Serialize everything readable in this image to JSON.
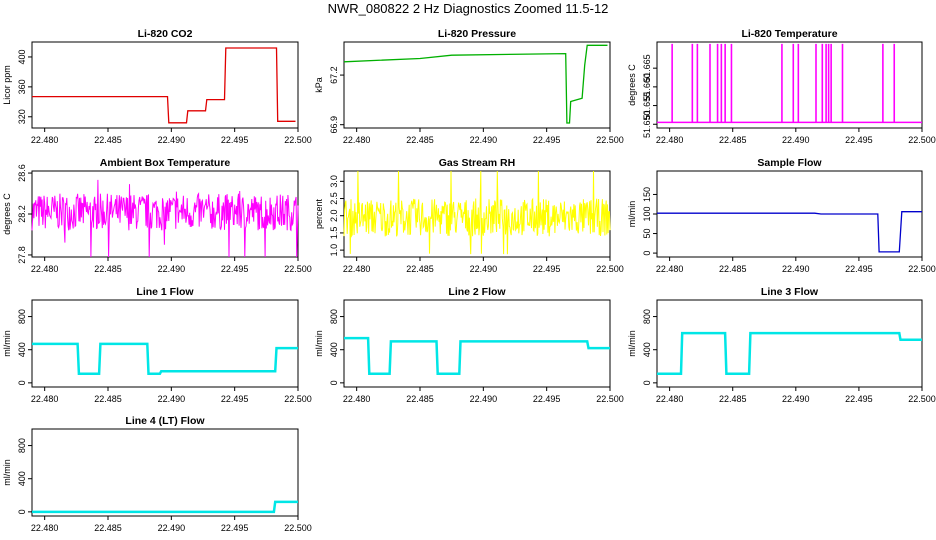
{
  "page_title": "NWR_080822  2 Hz Diagnostics Zoomed 11.5-12",
  "chart_data": [
    {
      "type": "line",
      "title": "Li-820 CO2",
      "ylabel": "Licor ppm",
      "color": "#e00000",
      "xlim": [
        22.479,
        22.5
      ],
      "ylim": [
        305,
        420
      ],
      "yticks": [
        320,
        360,
        400
      ],
      "series": [
        {
          "x": [
            22.479,
            22.4897,
            22.4898,
            22.4912,
            22.4913,
            22.4927,
            22.4928,
            22.4942,
            22.4943,
            22.4983,
            22.4984,
            22.4998
          ],
          "y": [
            347,
            347,
            312,
            312,
            328,
            328,
            343,
            343,
            412,
            412,
            314,
            314
          ]
        }
      ]
    },
    {
      "type": "line",
      "title": "Li-820 Pressure",
      "ylabel": "kPa",
      "color": "#00b000",
      "xlim": [
        22.479,
        22.5
      ],
      "ylim": [
        66.88,
        67.4
      ],
      "yticks": [
        66.9,
        67.2
      ],
      "yticklabels": [
        "66.9",
        "67.2"
      ],
      "series": [
        {
          "x": [
            22.479,
            22.485,
            22.4875,
            22.4965,
            22.4966,
            22.4968,
            22.4969,
            22.4978,
            22.498,
            22.4982,
            22.4998
          ],
          "y": [
            67.28,
            67.3,
            67.32,
            67.33,
            66.91,
            66.91,
            67.04,
            67.06,
            67.26,
            67.38,
            67.38
          ]
        }
      ]
    },
    {
      "type": "line",
      "title": "Li-820 Temperature",
      "ylabel": "degrees C",
      "color": "#ff00ff",
      "xlim": [
        22.479,
        22.5
      ],
      "ylim": [
        51.649,
        51.672
      ],
      "yticks": [
        51.65,
        51.655,
        51.66,
        51.665
      ],
      "yticklabels": [
        "51.650",
        "51.655",
        "51.660",
        "51.665"
      ],
      "baseline": 51.6505,
      "peak": 51.6715,
      "spikes": [
        22.4802,
        22.4818,
        22.4822,
        22.4832,
        22.4838,
        22.4841,
        22.4844,
        22.4849,
        22.4889,
        22.4898,
        22.4902,
        22.4916,
        22.4921,
        22.4924,
        22.4926,
        22.4928,
        22.4937,
        22.4969,
        22.4978
      ]
    },
    {
      "type": "line",
      "title": "Ambient Box Temperature",
      "ylabel": "degrees C",
      "color": "#ff00ff",
      "xlim": [
        22.479,
        22.5
      ],
      "ylim": [
        27.78,
        28.62
      ],
      "yticks": [
        27.8,
        28.2,
        28.6
      ],
      "yticklabels": [
        "27.8",
        "28.2",
        "28.6"
      ],
      "noise": {
        "center": 28.22,
        "amplitude": 0.18,
        "spikes": [
          27.82,
          28.58
        ]
      }
    },
    {
      "type": "line",
      "title": "Gas Stream RH",
      "ylabel": "percent",
      "color": "#ffff00",
      "xlim": [
        22.479,
        22.5
      ],
      "ylim": [
        0.8,
        3.3
      ],
      "yticks": [
        1,
        1.5,
        2,
        2.5,
        3
      ],
      "yticklabels": [
        "1.0",
        "1.5",
        "2.0",
        "2.5",
        "3.0"
      ],
      "noise": {
        "center": 1.95,
        "amplitude": 0.55,
        "spikes": [
          0.9,
          3.5
        ]
      }
    },
    {
      "type": "line",
      "title": "Sample Flow",
      "ylabel": "ml/min",
      "color": "#0000cc",
      "xlim": [
        22.479,
        22.5
      ],
      "ylim": [
        -10,
        210
      ],
      "yticks": [
        0,
        50,
        100,
        150
      ],
      "series": [
        {
          "x": [
            22.479,
            22.4915,
            22.492,
            22.4965,
            22.4966,
            22.4982,
            22.4984,
            22.5
          ],
          "y": [
            102,
            102,
            100,
            100,
            3,
            3,
            106,
            106
          ]
        }
      ]
    },
    {
      "type": "line",
      "title": "Line 1 Flow",
      "ylabel": "ml/min",
      "color": "#00e6e6",
      "xlim": [
        22.479,
        22.5
      ],
      "ylim": [
        -50,
        1000
      ],
      "yticks": [
        0,
        400,
        800
      ],
      "series": [
        {
          "x": [
            22.479,
            22.4826,
            22.4827,
            22.4843,
            22.4844,
            22.4881,
            22.4882,
            22.4891,
            22.4892,
            22.4982,
            22.4983,
            22.5
          ],
          "y": [
            470,
            470,
            110,
            110,
            470,
            470,
            110,
            110,
            140,
            140,
            420,
            420
          ]
        }
      ]
    },
    {
      "type": "line",
      "title": "Line 2 Flow",
      "ylabel": "ml/min",
      "color": "#00e6e6",
      "xlim": [
        22.479,
        22.5
      ],
      "ylim": [
        -50,
        1000
      ],
      "yticks": [
        0,
        400,
        800
      ],
      "series": [
        {
          "x": [
            22.479,
            22.4809,
            22.481,
            22.4826,
            22.4827,
            22.4863,
            22.4864,
            22.4881,
            22.4882,
            22.4982,
            22.4983,
            22.5
          ],
          "y": [
            540,
            540,
            110,
            110,
            500,
            500,
            110,
            110,
            500,
            500,
            420,
            420
          ]
        }
      ]
    },
    {
      "type": "line",
      "title": "Line 3 Flow",
      "ylabel": "ml/min",
      "color": "#00e6e6",
      "xlim": [
        22.479,
        22.5
      ],
      "ylim": [
        -50,
        1000
      ],
      "yticks": [
        0,
        400,
        800
      ],
      "series": [
        {
          "x": [
            22.479,
            22.4809,
            22.481,
            22.4844,
            22.4845,
            22.4863,
            22.4864,
            22.4982,
            22.4983,
            22.5
          ],
          "y": [
            110,
            110,
            600,
            600,
            110,
            110,
            600,
            600,
            520,
            520
          ]
        }
      ]
    },
    {
      "type": "line",
      "title": "Line 4 (LT) Flow",
      "ylabel": "ml/min",
      "color": "#00e6e6",
      "xlim": [
        22.479,
        22.5
      ],
      "ylim": [
        -50,
        1000
      ],
      "yticks": [
        0,
        400,
        800
      ],
      "series": [
        {
          "x": [
            22.479,
            22.4981,
            22.4982,
            22.5
          ],
          "y": [
            0,
            0,
            120,
            120
          ]
        }
      ]
    }
  ],
  "xticks": [
    22.48,
    22.485,
    22.49,
    22.495,
    22.5
  ],
  "xticklabels": [
    "22.480",
    "22.485",
    "22.490",
    "22.495",
    "22.500"
  ]
}
